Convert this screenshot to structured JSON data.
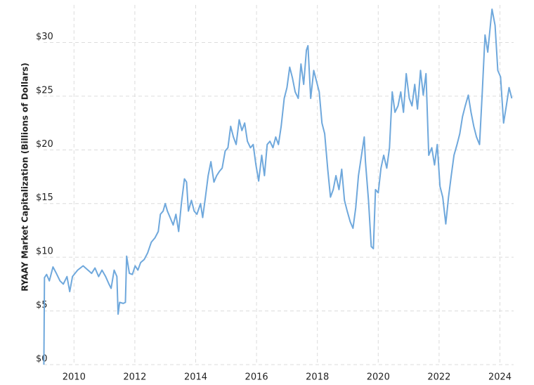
{
  "chart_data": {
    "type": "line",
    "y_label": "RYAAY Market Capitalization (Billions of Dollars)",
    "xlim": [
      2009.0,
      2024.45
    ],
    "xticks": [
      2010,
      2012,
      2014,
      2016,
      2018,
      2020,
      2022,
      2024
    ],
    "ylim": [
      0,
      33.5
    ],
    "yticks": [
      {
        "value": 0,
        "label": "$0"
      },
      {
        "value": 5,
        "label": "$5"
      },
      {
        "value": 10,
        "label": "$10"
      },
      {
        "value": 15,
        "label": "$15"
      },
      {
        "value": 20,
        "label": "$20"
      },
      {
        "value": 25,
        "label": "$25"
      },
      {
        "value": 30,
        "label": "$30"
      }
    ],
    "grid": true,
    "color": "#6fa8dc",
    "x": [
      2009.01,
      2009.03,
      2009.1,
      2009.19,
      2009.31,
      2009.42,
      2009.54,
      2009.65,
      2009.77,
      2009.86,
      2009.95,
      2010.12,
      2010.3,
      2010.46,
      2010.58,
      2010.69,
      2010.81,
      2010.92,
      2011.04,
      2011.15,
      2011.22,
      2011.32,
      2011.41,
      2011.45,
      2011.5,
      2011.62,
      2011.69,
      2011.73,
      2011.82,
      2011.92,
      2012.01,
      2012.1,
      2012.19,
      2012.31,
      2012.42,
      2012.54,
      2012.66,
      2012.77,
      2012.84,
      2012.93,
      2013.0,
      2013.07,
      2013.16,
      2013.26,
      2013.35,
      2013.44,
      2013.53,
      2013.63,
      2013.7,
      2013.76,
      2013.86,
      2013.95,
      2014.04,
      2014.16,
      2014.23,
      2014.32,
      2014.41,
      2014.5,
      2014.6,
      2014.69,
      2014.78,
      2014.87,
      2014.97,
      2015.06,
      2015.15,
      2015.24,
      2015.33,
      2015.43,
      2015.52,
      2015.61,
      2015.7,
      2015.8,
      2015.89,
      2015.98,
      2016.07,
      2016.17,
      2016.26,
      2016.35,
      2016.44,
      2016.54,
      2016.63,
      2016.72,
      2016.81,
      2016.91,
      2017.0,
      2017.09,
      2017.18,
      2017.27,
      2017.37,
      2017.46,
      2017.55,
      2017.64,
      2017.69,
      2017.78,
      2017.88,
      2017.97,
      2018.06,
      2018.15,
      2018.24,
      2018.34,
      2018.43,
      2018.52,
      2018.61,
      2018.71,
      2018.8,
      2018.89,
      2018.98,
      2019.08,
      2019.17,
      2019.26,
      2019.35,
      2019.45,
      2019.54,
      2019.58,
      2019.68,
      2019.77,
      2019.84,
      2019.91,
      2020.0,
      2020.09,
      2020.18,
      2020.28,
      2020.37,
      2020.46,
      2020.55,
      2020.65,
      2020.74,
      2020.83,
      2020.92,
      2021.02,
      2021.11,
      2021.2,
      2021.29,
      2021.39,
      2021.48,
      2021.57,
      2021.66,
      2021.76,
      2021.85,
      2021.94,
      2022.03,
      2022.12,
      2022.22,
      2022.31,
      2022.4,
      2022.49,
      2022.59,
      2022.68,
      2022.77,
      2022.86,
      2022.96,
      2023.05,
      2023.14,
      2023.23,
      2023.33,
      2023.42,
      2023.51,
      2023.6,
      2023.7,
      2023.74,
      2023.84,
      2023.93,
      2024.02,
      2024.12,
      2024.21,
      2024.3,
      2024.39
    ],
    "values": [
      0,
      8.1,
      8.4,
      7.8,
      9.1,
      8.5,
      7.8,
      7.5,
      8.2,
      6.8,
      8.2,
      8.8,
      9.2,
      8.8,
      8.5,
      9.0,
      8.2,
      8.8,
      8.2,
      7.5,
      7.1,
      8.8,
      8.2,
      4.7,
      5.8,
      5.7,
      5.8,
      10.1,
      8.5,
      8.4,
      9.2,
      8.8,
      9.5,
      9.8,
      10.4,
      11.4,
      11.8,
      12.4,
      14.0,
      14.3,
      15.0,
      14.3,
      13.7,
      13.0,
      14.0,
      12.4,
      15.0,
      17.3,
      17.0,
      14.3,
      15.3,
      14.3,
      14.0,
      15.0,
      13.7,
      15.6,
      17.6,
      18.9,
      17.0,
      17.6,
      18.0,
      18.3,
      19.9,
      20.2,
      22.2,
      21.2,
      20.5,
      22.8,
      21.8,
      22.5,
      20.8,
      20.2,
      20.5,
      18.6,
      17.1,
      19.5,
      17.6,
      20.5,
      20.8,
      20.2,
      21.2,
      20.5,
      22.2,
      24.8,
      25.8,
      27.7,
      26.7,
      25.4,
      24.8,
      28.0,
      26.1,
      29.3,
      29.7,
      24.8,
      27.4,
      26.4,
      25.4,
      22.5,
      21.5,
      18.2,
      15.6,
      16.3,
      17.6,
      16.3,
      18.2,
      15.3,
      14.3,
      13.3,
      12.7,
      14.6,
      17.6,
      19.5,
      21.2,
      18.9,
      15.3,
      11.0,
      10.8,
      16.3,
      16.0,
      18.3,
      19.5,
      18.3,
      20.2,
      25.4,
      23.5,
      24.1,
      25.4,
      23.5,
      27.1,
      24.8,
      24.1,
      26.1,
      23.8,
      27.4,
      25.1,
      27.1,
      19.5,
      20.2,
      18.6,
      20.5,
      16.6,
      15.6,
      13.1,
      15.6,
      17.6,
      19.5,
      20.5,
      21.5,
      23.1,
      24.1,
      25.1,
      23.5,
      22.2,
      21.2,
      20.5,
      25.4,
      30.7,
      29.1,
      32.0,
      33.1,
      31.6,
      27.4,
      26.8,
      22.5,
      24.1,
      25.8,
      24.8
    ]
  }
}
